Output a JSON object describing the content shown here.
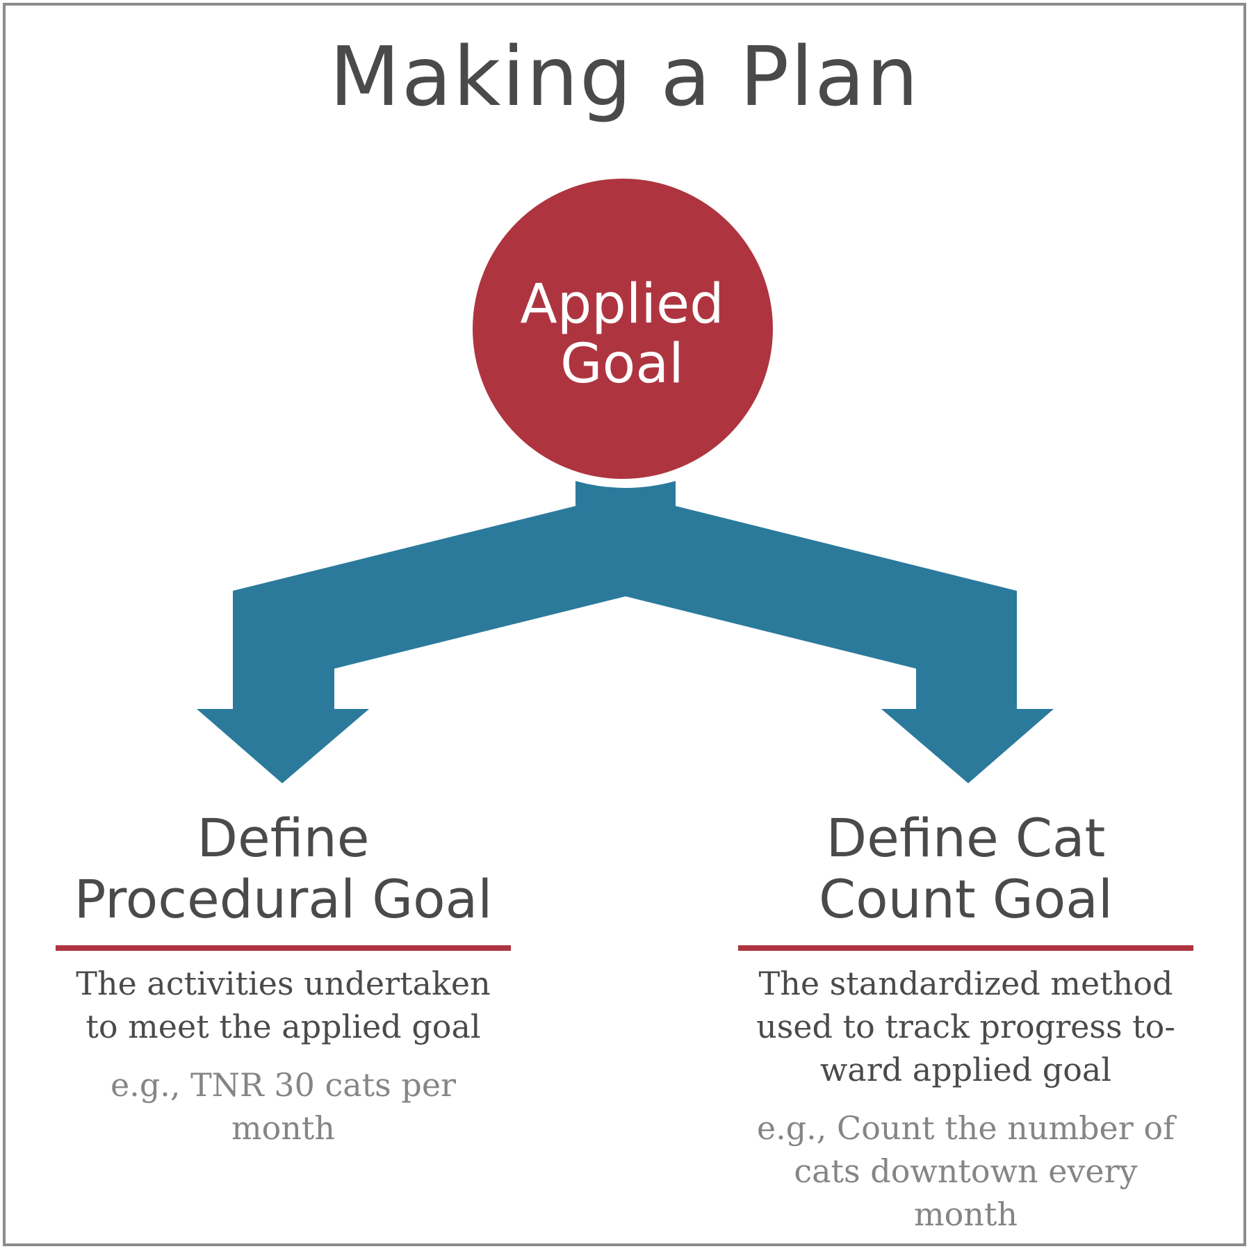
{
  "title": "Making a Plan",
  "center_node": {
    "label_line1": "Applied",
    "label_line2": "Goal",
    "color": "#ae3540"
  },
  "arrow_color": "#2b7a9c",
  "rule_color": "#ae3540",
  "left": {
    "heading_line1": "Define",
    "heading_line2": "Procedural Goal",
    "description_line1": "The activities undertaken",
    "description_line2": "to meet the applied goal",
    "example": "e.g., TNR 30 cats per month"
  },
  "right": {
    "heading_line1": "Define Cat",
    "heading_line2": "Count Goal",
    "description_line1": "The standardized method",
    "description_line2": "used to track progress to-",
    "description_line3": "ward applied goal",
    "example_line1": "e.g., Count the number of",
    "example_line2": "cats downtown every",
    "example_line3": "month"
  }
}
